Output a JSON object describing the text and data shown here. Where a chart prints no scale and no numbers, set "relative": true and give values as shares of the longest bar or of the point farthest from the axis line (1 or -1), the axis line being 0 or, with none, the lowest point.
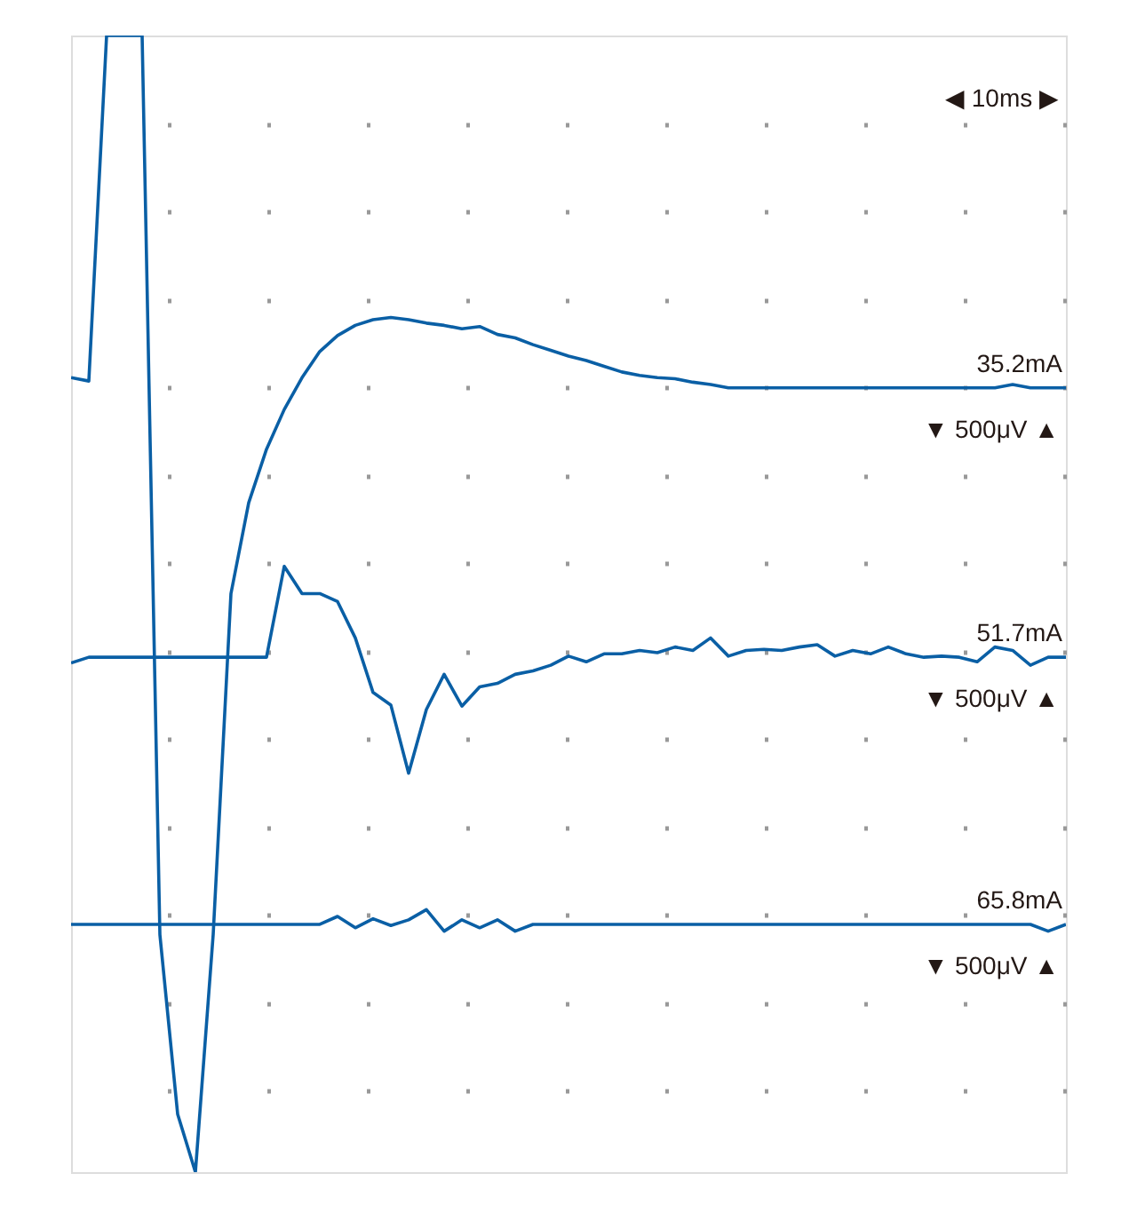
{
  "chart_data": {
    "type": "line",
    "relative": true,
    "grid": true,
    "categories": [
      null,
      null,
      null,
      null,
      null,
      null,
      null,
      null,
      null,
      null,
      null,
      null,
      null,
      null,
      null,
      null,
      null,
      null,
      null,
      null,
      null,
      null,
      null,
      null,
      null,
      null,
      null,
      null,
      null,
      null,
      null,
      null,
      null,
      null,
      null,
      null,
      null,
      null,
      null,
      null,
      null,
      null,
      null,
      null,
      null,
      null,
      null,
      null,
      null,
      null,
      null,
      null,
      null,
      null,
      null,
      null,
      null
    ],
    "series": [
      {
        "name": "35.2mA",
        "color": "#0a5fa5",
        "values": [
          0.699,
          0.696,
          1.0,
          1.0,
          1.0,
          0.209,
          0.051,
          0.0,
          0.209,
          0.509,
          0.589,
          0.636,
          0.671,
          0.699,
          0.722,
          0.736,
          0.745,
          0.75,
          0.752,
          0.75,
          0.747,
          0.745,
          0.742,
          0.744,
          0.737,
          0.734,
          0.728,
          0.723,
          0.718,
          0.714,
          0.709,
          0.704,
          0.701,
          0.699,
          0.698,
          0.695,
          0.693,
          0.69,
          0.69,
          0.69,
          0.69,
          0.69,
          0.69,
          0.69,
          0.69,
          0.69,
          0.69,
          0.69,
          0.69,
          0.69,
          0.69,
          0.69,
          0.69,
          0.693,
          0.69,
          0.69,
          0.69
        ]
      },
      {
        "name": "51.7mA",
        "color": "#0a5fa5",
        "values": [
          0.448,
          0.453,
          0.453,
          0.453,
          0.453,
          0.453,
          0.453,
          0.453,
          0.453,
          0.453,
          0.453,
          0.453,
          0.533,
          0.509,
          0.509,
          0.502,
          0.47,
          0.422,
          0.411,
          0.351,
          0.407,
          0.438,
          0.41,
          0.427,
          0.43,
          0.438,
          0.441,
          0.446,
          0.454,
          0.449,
          0.456,
          0.456,
          0.459,
          0.457,
          0.462,
          0.459,
          0.47,
          0.454,
          0.459,
          0.46,
          0.459,
          0.462,
          0.464,
          0.454,
          0.459,
          0.456,
          0.462,
          0.456,
          0.453,
          0.454,
          0.453,
          0.449,
          0.462,
          0.459,
          0.446,
          0.453,
          0.453
        ]
      },
      {
        "name": "65.8mA",
        "color": "#0a5fa5",
        "values": [
          0.218,
          0.218,
          0.218,
          0.218,
          0.218,
          0.218,
          0.218,
          0.218,
          0.218,
          0.218,
          0.218,
          0.218,
          0.218,
          0.218,
          0.218,
          0.225,
          0.215,
          0.223,
          0.217,
          0.222,
          0.231,
          0.212,
          0.222,
          0.215,
          0.222,
          0.212,
          0.218,
          0.218,
          0.218,
          0.218,
          0.218,
          0.218,
          0.218,
          0.218,
          0.218,
          0.218,
          0.218,
          0.218,
          0.218,
          0.218,
          0.218,
          0.218,
          0.218,
          0.218,
          0.218,
          0.218,
          0.218,
          0.218,
          0.218,
          0.218,
          0.218,
          0.218,
          0.218,
          0.218,
          0.218,
          0.212,
          0.218
        ]
      }
    ],
    "annotations": [
      "◀ 10ms ▶",
      "▼ 500μV ▲",
      "▼ 500μV ▲",
      "▼ 500μV ▲"
    ]
  }
}
